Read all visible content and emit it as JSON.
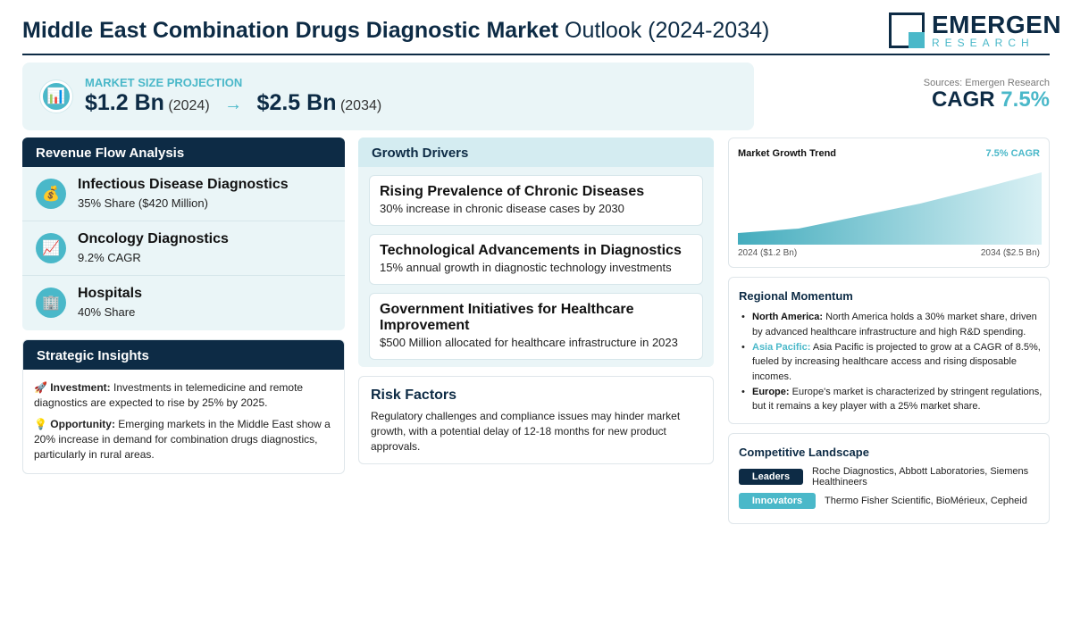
{
  "header": {
    "title_bold": "Middle East Combination Drugs Diagnostic Market",
    "title_rest": "Outlook (2024-2034)",
    "logo_main": "EMERGEN",
    "logo_sub": "RESEARCH"
  },
  "projection": {
    "label": "MARKET SIZE PROJECTION",
    "start_value": "$1.2 Bn",
    "start_year": "(2024)",
    "arrow": "→",
    "end_value": "$2.5 Bn",
    "end_year": "(2034)",
    "icon": "chart-icon"
  },
  "summary": {
    "sources": "Sources: Emergen Research",
    "cagr_label": "CAGR",
    "cagr_value": "7.5%"
  },
  "revenue": {
    "title": "Revenue Flow Analysis",
    "items": [
      {
        "title": "Infectious Disease Diagnostics",
        "sub": "35% Share ($420 Million)",
        "icon": "money-bag-icon"
      },
      {
        "title": "Oncology Diagnostics",
        "sub": "9.2% CAGR",
        "icon": "trending-up-icon"
      },
      {
        "title": "Hospitals",
        "sub": "40% Share",
        "icon": "hospital-icon"
      }
    ]
  },
  "strategic": {
    "title": "Strategic Insights",
    "investment_label": "Investment:",
    "investment_text": "Investments in telemedicine and remote diagnostics are expected to rise by 25% by 2025.",
    "opportunity_label": "Opportunity:",
    "opportunity_text": "Emerging markets in the Middle East show a 20% increase in demand for combination drugs diagnostics, particularly in rural areas."
  },
  "growth": {
    "title": "Growth Drivers",
    "drivers": [
      {
        "title": "Rising Prevalence of Chronic Diseases",
        "sub": "30% increase in chronic disease cases by 2030"
      },
      {
        "title": "Technological Advancements in Diagnostics",
        "sub": "15% annual growth in diagnostic technology investments"
      },
      {
        "title": "Government Initiatives for Healthcare Improvement",
        "sub": "$500 Million allocated for healthcare infrastructure in 2023"
      }
    ]
  },
  "risk": {
    "title": "Risk Factors",
    "text": "Regulatory challenges and compliance issues may hinder market growth, with a potential delay of 12-18 months for new product approvals."
  },
  "trend": {
    "title": "Market Growth Trend",
    "cagr": "7.5% CAGR",
    "left_label": "2024 ($1.2 Bn)",
    "right_label": "2034 ($2.5 Bn)"
  },
  "regional": {
    "title": "Regional Momentum",
    "items": [
      {
        "name": "North America:",
        "text": "North America holds a 30% market share, driven by advanced healthcare infrastructure and high R&D spending."
      },
      {
        "name": "Asia Pacific:",
        "text": "Asia Pacific is projected to grow at a CAGR of 8.5%, fueled by increasing healthcare access and rising disposable incomes."
      },
      {
        "name": "Europe:",
        "text": "Europe's market is characterized by stringent regulations, but it remains a key player with a 25% market share."
      }
    ]
  },
  "competitive": {
    "title": "Competitive Landscape",
    "leaders_label": "Leaders",
    "leaders_text": "Roche Diagnostics, Abbott Laboratories, Siemens Healthineers",
    "innovators_label": "Innovators",
    "innovators_text": "Thermo Fisher Scientific, BioMérieux, Cepheid"
  },
  "colors": {
    "navy": "#0d2b45",
    "accent": "#4ab8c9",
    "panel": "#eaf5f7"
  }
}
